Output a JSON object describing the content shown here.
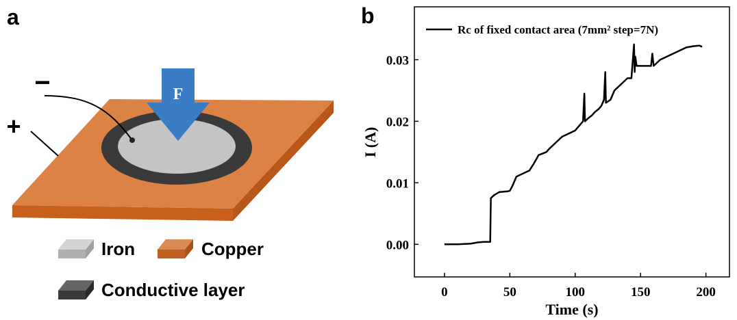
{
  "diagram": {
    "panel_label": "a",
    "force_label": "F",
    "minus_label": "−",
    "plus_label": "+",
    "legend": [
      "Iron",
      "Copper",
      "Conductive layer"
    ]
  },
  "chart_data": {
    "type": "line",
    "panel_label": "b",
    "xlabel": "Time (s)",
    "ylabel": "I (A)",
    "xlim": [
      -23,
      218
    ],
    "ylim": [
      -0.0053,
      0.0386
    ],
    "xticks": [
      0,
      50,
      100,
      150,
      200
    ],
    "yticks": [
      {
        "value": 0,
        "label": "0.00"
      },
      0.01,
      0.02,
      0.03
    ],
    "legend_position": "upper left",
    "series": [
      {
        "name": "Rc of fixed contact area (7mm² step=7N)",
        "color": "#000000",
        "x": [
          0,
          10,
          20,
          25,
          30,
          35,
          35.5,
          38,
          42,
          48,
          50,
          52,
          55,
          60,
          65,
          68,
          72,
          78,
          80,
          85,
          90,
          95,
          100,
          104,
          106,
          107,
          107.5,
          110,
          113,
          115,
          118,
          120,
          122,
          123,
          123.5,
          127,
          130,
          135,
          140,
          143,
          145,
          145.5,
          146,
          147,
          150,
          155,
          158,
          159,
          160,
          165,
          170,
          175,
          180,
          185,
          190,
          195,
          197
        ],
        "values": [
          0,
          0,
          0.0001,
          0.0003,
          0.0004,
          0.0004,
          0.0075,
          0.008,
          0.0085,
          0.0086,
          0.0087,
          0.0095,
          0.011,
          0.0115,
          0.012,
          0.013,
          0.0145,
          0.015,
          0.0155,
          0.0165,
          0.0175,
          0.018,
          0.0185,
          0.0195,
          0.02,
          0.0245,
          0.02,
          0.0205,
          0.021,
          0.0215,
          0.022,
          0.0225,
          0.0235,
          0.028,
          0.023,
          0.0235,
          0.025,
          0.026,
          0.027,
          0.027,
          0.0325,
          0.028,
          0.0305,
          0.029,
          0.029,
          0.029,
          0.029,
          0.031,
          0.029,
          0.03,
          0.0305,
          0.031,
          0.0315,
          0.032,
          0.0322,
          0.0323,
          0.0321
        ]
      }
    ]
  }
}
